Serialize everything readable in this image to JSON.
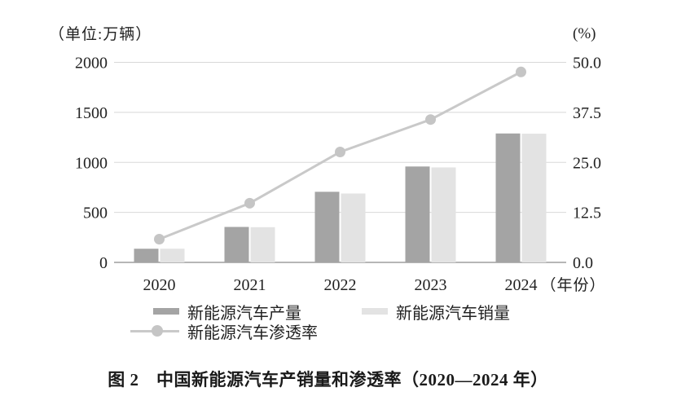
{
  "header": {
    "left_unit": "（单位:万辆）",
    "right_unit": "(%)"
  },
  "legend": {
    "production": "新能源汽车产量",
    "sales": "新能源汽车销量",
    "penetration": "新能源汽车渗透率"
  },
  "caption": "图 2　中国新能源汽车产销量和渗透率（2020—2024 年）",
  "colors": {
    "production_bar": "#a4a4a4",
    "sales_bar": "#e3e3e3",
    "line": "#c9c9c9",
    "marker": "#c5c5c5",
    "gridline": "#d8d8d8",
    "axis_line": "#9e9e9e",
    "text": "#222222"
  },
  "chart_data": {
    "type": "bar",
    "subtype": "combo-bar-line",
    "title": "图 2　中国新能源汽车产销量和渗透率（2020—2024 年）",
    "categories": [
      "2020",
      "2021",
      "2022",
      "2023",
      "2024"
    ],
    "x_suffix": "（年份）",
    "series": [
      {
        "name": "新能源汽车产量",
        "type": "bar",
        "axis": "left",
        "values": [
          136.6,
          354.5,
          705.8,
          958.7,
          1288.8
        ]
      },
      {
        "name": "新能源汽车销量",
        "type": "bar",
        "axis": "left",
        "values": [
          136.7,
          352.1,
          688.7,
          949.5,
          1286.6
        ]
      },
      {
        "name": "新能源汽车渗透率",
        "type": "line",
        "axis": "right",
        "values": [
          5.8,
          14.8,
          27.6,
          35.7,
          47.6
        ]
      }
    ],
    "left_axis": {
      "unit": "（单位:万辆）",
      "range": [
        0,
        2000
      ],
      "tick_values": [
        2000,
        1500,
        1000,
        500,
        0
      ],
      "tick_labels": [
        "2000",
        "1500",
        "1000",
        "500",
        "0"
      ]
    },
    "right_axis": {
      "unit": "(%)",
      "range": [
        0,
        50
      ],
      "tick_values": [
        50,
        37.5,
        25,
        12.5,
        0
      ],
      "tick_labels": [
        "50.0",
        "37.5",
        "25.0",
        "12.5",
        "0.0"
      ]
    },
    "grid": true,
    "legend_position": "bottom"
  }
}
